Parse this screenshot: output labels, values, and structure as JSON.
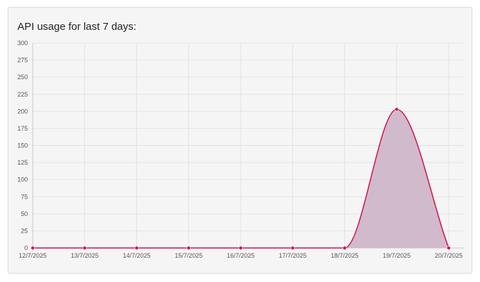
{
  "panel": {
    "title": "API usage for last 7 days:"
  },
  "chart_data": {
    "type": "area",
    "title": "API usage for last 7 days:",
    "xlabel": "",
    "ylabel": "",
    "categories": [
      "12/7/2025",
      "13/7/2025",
      "14/7/2025",
      "15/7/2025",
      "16/7/2025",
      "17/7/2025",
      "18/7/2025",
      "19/7/2025",
      "20/7/2025"
    ],
    "series": [
      {
        "values": [
          0,
          0,
          0,
          0,
          0,
          0,
          0,
          203,
          0
        ]
      }
    ],
    "ylim": [
      0,
      300
    ],
    "y_ticks": [
      0,
      25,
      50,
      75,
      100,
      125,
      150,
      175,
      200,
      225,
      250,
      275,
      300
    ],
    "grid": true,
    "legend": "none",
    "curve": "smooth",
    "colors": {
      "line": "#d0104c",
      "fill": "#cdb4c8",
      "grid": "#e3e3e3",
      "axis": "#c8c8c8"
    }
  }
}
